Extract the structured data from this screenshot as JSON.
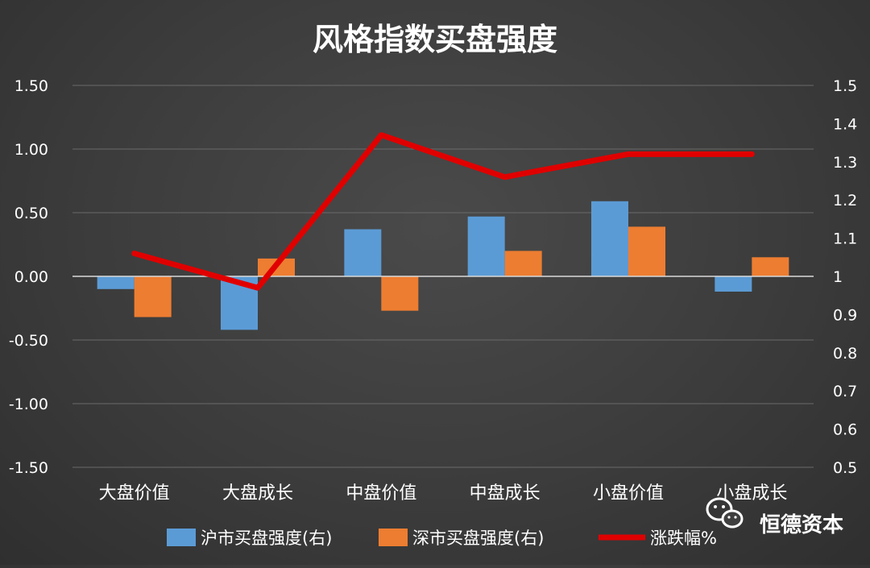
{
  "chart_data": {
    "type": "bar",
    "title": "风格指数买盘强度",
    "categories": [
      "大盘价值",
      "大盘成长",
      "中盘价值",
      "中盘成长",
      "小盘价值",
      "小盘成长"
    ],
    "series": [
      {
        "name": "沪市买盘强度(右)",
        "kind": "bar",
        "axis": "left",
        "color": "#5B9BD5",
        "values": [
          -0.1,
          -0.42,
          0.37,
          0.47,
          0.59,
          -0.12
        ]
      },
      {
        "name": "深市买盘强度(右)",
        "kind": "bar",
        "axis": "left",
        "color": "#ED7D31",
        "values": [
          -0.32,
          0.14,
          -0.27,
          0.2,
          0.39,
          0.15
        ]
      },
      {
        "name": "涨跌幅%",
        "kind": "line",
        "axis": "right",
        "color": "#E00000",
        "values": [
          1.06,
          0.97,
          1.37,
          1.26,
          1.32,
          1.32
        ]
      }
    ],
    "y_left": {
      "min": -1.5,
      "max": 1.5,
      "ticks": [
        "1.50",
        "1.00",
        "0.50",
        "0.00",
        "-0.50",
        "-1.00",
        "-1.50"
      ]
    },
    "y_right": {
      "min": 0.5,
      "max": 1.5,
      "ticks": [
        "1.5",
        "1.4",
        "1.3",
        "1.2",
        "1.1",
        "1",
        "0.9",
        "0.8",
        "0.7",
        "0.6",
        "0.5"
      ]
    },
    "grid": true,
    "legend_position": "bottom"
  },
  "watermark": {
    "text": "恒德资本",
    "icon": "wechat-icon"
  }
}
